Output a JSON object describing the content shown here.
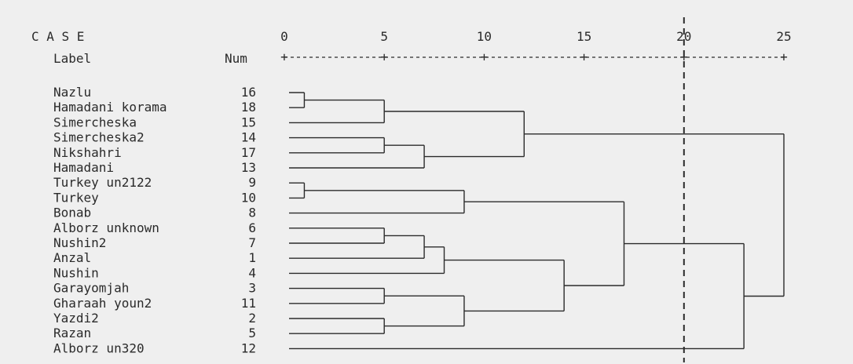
{
  "header": {
    "case": "C A S E",
    "label": "Label",
    "num": "Num"
  },
  "axis": {
    "ticks": [
      "0",
      "5",
      "10",
      "15",
      "20",
      "25"
    ],
    "tick_values": [
      0,
      5,
      10,
      15,
      20,
      25
    ],
    "range": [
      0,
      25
    ],
    "cut_value": 20
  },
  "rows": [
    {
      "label": "Nazlu",
      "num": "16"
    },
    {
      "label": "Hamadani korama",
      "num": "18"
    },
    {
      "label": "Simercheska",
      "num": "15"
    },
    {
      "label": "Simercheska2",
      "num": "14"
    },
    {
      "label": "Nikshahri",
      "num": "17"
    },
    {
      "label": "Hamadani",
      "num": "13"
    },
    {
      "label": "Turkey un2122",
      "num": "9"
    },
    {
      "label": "Turkey",
      "num": "10"
    },
    {
      "label": "Bonab",
      "num": "8"
    },
    {
      "label": "Alborz unknown",
      "num": "6"
    },
    {
      "label": "Nushin2",
      "num": "7"
    },
    {
      "label": "Anzal",
      "num": "1"
    },
    {
      "label": "Nushin",
      "num": "4"
    },
    {
      "label": "Garayomjah",
      "num": "3"
    },
    {
      "label": "Gharaah youn2",
      "num": "11"
    },
    {
      "label": "Yazdi2",
      "num": "2"
    },
    {
      "label": "Razan",
      "num": "5"
    },
    {
      "label": "Alborz un320",
      "num": "12"
    }
  ],
  "merges": [
    {
      "id": "A",
      "a": "L0",
      "b": "L1",
      "h": 1
    },
    {
      "id": "B",
      "a": "A",
      "b": "L2",
      "h": 5
    },
    {
      "id": "C",
      "a": "L3",
      "b": "L4",
      "h": 5
    },
    {
      "id": "D",
      "a": "C",
      "b": "L5",
      "h": 7
    },
    {
      "id": "E",
      "a": "B",
      "b": "D",
      "h": 12
    },
    {
      "id": "F",
      "a": "L6",
      "b": "L7",
      "h": 1
    },
    {
      "id": "G",
      "a": "F",
      "b": "L8",
      "h": 9
    },
    {
      "id": "H",
      "a": "L9",
      "b": "L10",
      "h": 5
    },
    {
      "id": "I",
      "a": "H",
      "b": "L11",
      "h": 7
    },
    {
      "id": "J",
      "a": "I",
      "b": "L12",
      "h": 8
    },
    {
      "id": "K",
      "a": "L13",
      "b": "L14",
      "h": 5
    },
    {
      "id": "L",
      "a": "K",
      "b": "M",
      "h": 9
    },
    {
      "id": "M",
      "a": "L15",
      "b": "L16",
      "h": 5
    },
    {
      "id": "N",
      "a": "J",
      "b": "L",
      "h": 14
    },
    {
      "id": "O",
      "a": "G",
      "b": "N",
      "h": 17
    },
    {
      "id": "P",
      "a": "O",
      "b": "L17",
      "h": 23
    },
    {
      "id": "Q",
      "a": "E",
      "b": "P",
      "h": 25
    }
  ]
}
